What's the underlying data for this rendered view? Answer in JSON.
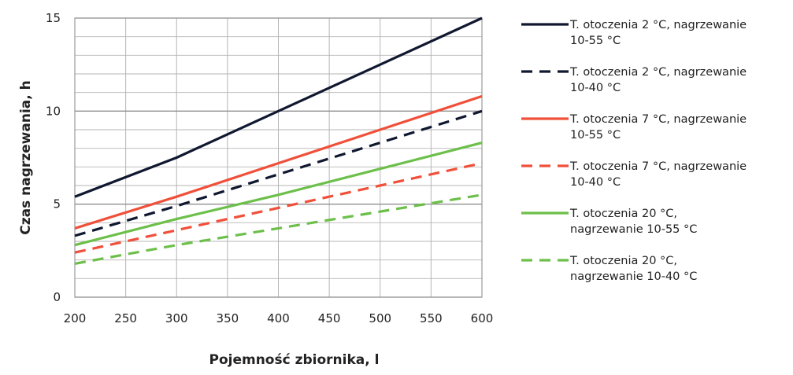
{
  "chart_data": {
    "type": "line",
    "title": "",
    "xlabel": "Pojemność zbiornika, l",
    "ylabel": "Czas nagrzewania, h",
    "x": [
      200,
      300,
      400,
      500,
      600
    ],
    "xlim": [
      200,
      600
    ],
    "ylim": [
      0,
      15
    ],
    "x_ticks": [
      "200",
      "250",
      "300",
      "350",
      "400",
      "450",
      "500",
      "550",
      "600"
    ],
    "y_ticks": [
      "0",
      "5",
      "10",
      "15"
    ],
    "grid": true,
    "legend_position": "right",
    "series": [
      {
        "name_lines": [
          "T. otoczenia 2 °C, nagrzewanie",
          "10-55 °C"
        ],
        "values": [
          5.4,
          7.5,
          10.0,
          12.5,
          15.0
        ],
        "color": "#101830",
        "style": "solid"
      },
      {
        "name_lines": [
          "T. otoczenia 2 °C, nagrzewanie",
          "10-40 °C"
        ],
        "values": [
          3.3,
          4.9,
          6.6,
          8.3,
          10.0
        ],
        "color": "#101830",
        "style": "dashed"
      },
      {
        "name_lines": [
          "T. otoczenia 7 °C, nagrzewanie",
          "10-55 °C"
        ],
        "values": [
          3.7,
          5.4,
          7.2,
          9.0,
          10.8
        ],
        "color": "#f0503a",
        "style": "solid"
      },
      {
        "name_lines": [
          "T. otoczenia 7 °C, nagrzewanie",
          "10-40 °C"
        ],
        "values": [
          2.4,
          3.6,
          4.8,
          6.0,
          7.2
        ],
        "color": "#f0503a",
        "style": "dashed"
      },
      {
        "name_lines": [
          "T. otoczenia 20 °C,",
          "nagrzewanie 10-55 °C"
        ],
        "values": [
          2.8,
          4.2,
          5.5,
          6.9,
          8.3
        ],
        "color": "#6cc04a",
        "style": "solid"
      },
      {
        "name_lines": [
          "T. otoczenia 20 °C,",
          "nagrzewanie 10-40 °C"
        ],
        "values": [
          1.8,
          2.8,
          3.7,
          4.6,
          5.5
        ],
        "color": "#6cc04a",
        "style": "dashed"
      }
    ]
  },
  "colors": {
    "grid": "#b5b5b5",
    "axis": "#9a9a9a"
  }
}
